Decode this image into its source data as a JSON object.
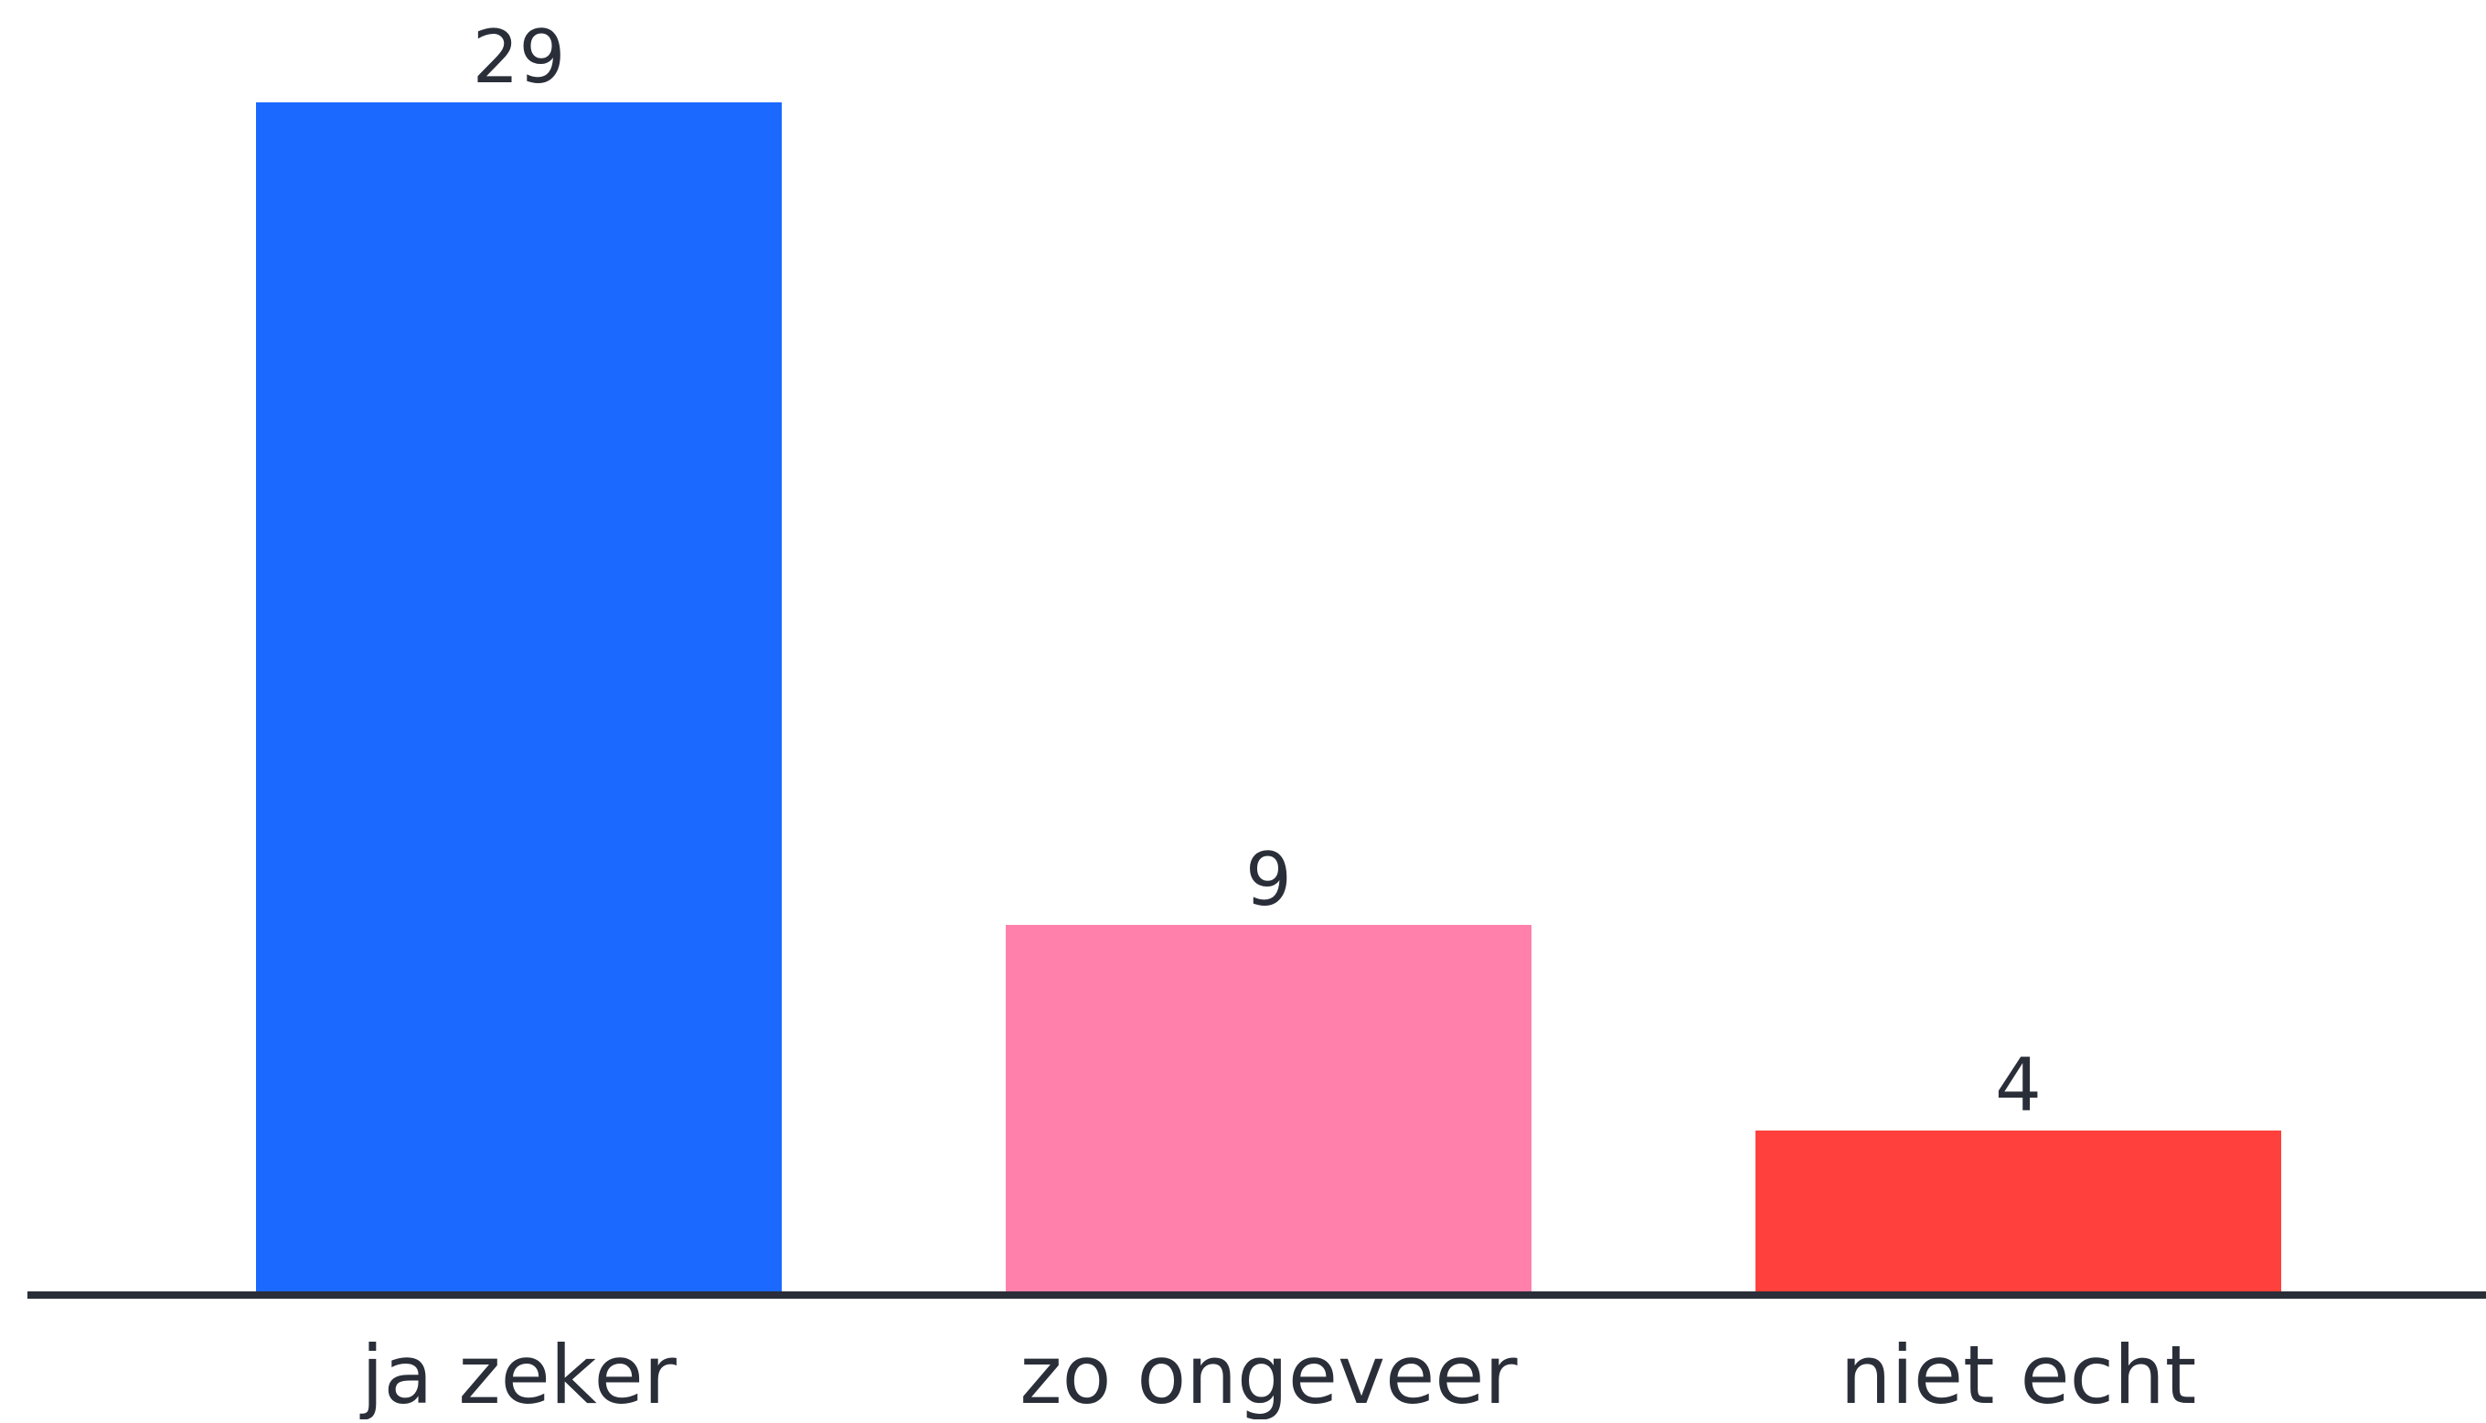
{
  "chart_data": {
    "type": "bar",
    "categories": [
      "ja zeker",
      "zo ongeveer",
      "niet echt"
    ],
    "values": [
      29,
      9,
      4
    ],
    "colors": [
      "#1b69ff",
      "#ff80ab",
      "#ff403c"
    ],
    "axis_color": "#2a2e38",
    "label_color": "#2a2e38",
    "ylim": [
      0,
      29
    ],
    "grid": false,
    "legend": "none",
    "data_labels": true
  }
}
